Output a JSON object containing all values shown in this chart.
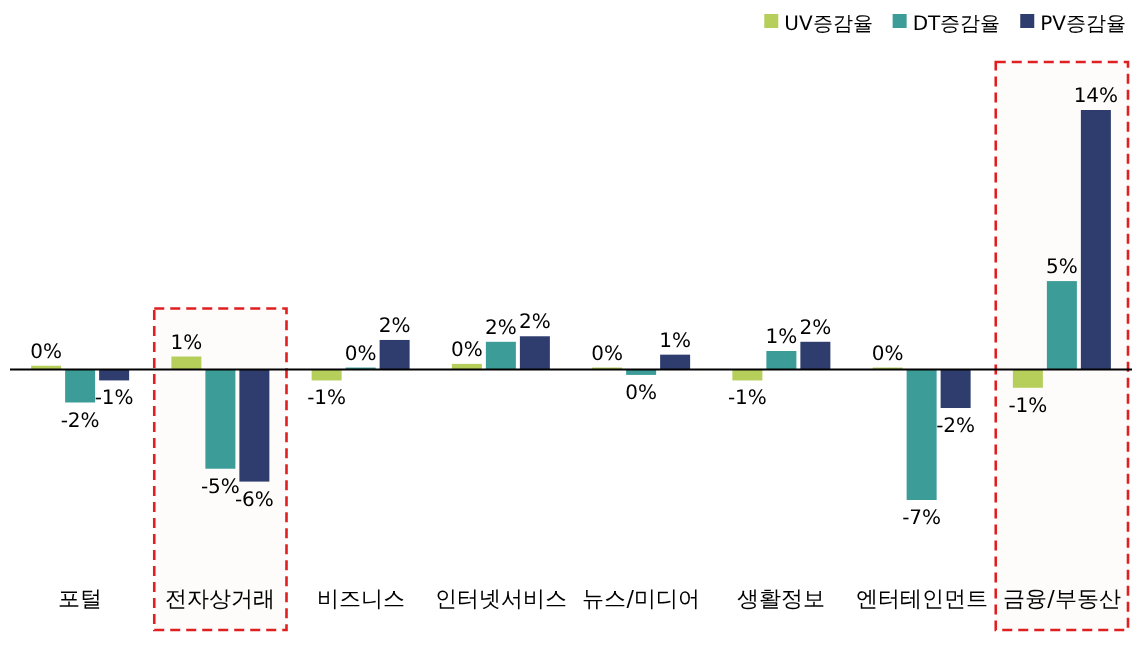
{
  "chart_data": {
    "type": "bar",
    "categories": [
      "포털",
      "전자상거래",
      "비즈니스",
      "인터넷서비스",
      "뉴스/미디어",
      "생활정보",
      "엔터테인먼트",
      "금융/부동산"
    ],
    "series": [
      {
        "name": "UV증감율",
        "color": "#b5cf5a",
        "values": [
          0.2,
          0.7,
          -0.6,
          0.3,
          0.1,
          -0.6,
          0.1,
          -1.0
        ],
        "value_labels": [
          "0%",
          "1%",
          "-1%",
          "0%",
          "0%",
          "-1%",
          "0%",
          "-1%"
        ]
      },
      {
        "name": "DT증감율",
        "color": "#3c9d98",
        "values": [
          -1.8,
          -5.4,
          0.1,
          1.5,
          -0.3,
          1.0,
          -7.1,
          4.8
        ],
        "value_labels": [
          "-2%",
          "-5%",
          "0%",
          "2%",
          "0%",
          "1%",
          "-7%",
          "5%"
        ]
      },
      {
        "name": "PV증감율",
        "color": "#2e3d6e",
        "values": [
          -0.6,
          -6.1,
          1.6,
          1.8,
          0.8,
          1.5,
          -2.1,
          14.1
        ],
        "value_labels": [
          "-1%",
          "-6%",
          "2%",
          "2%",
          "1%",
          "2%",
          "-2%",
          "14%"
        ]
      }
    ],
    "legend": "top right",
    "bands": [
      {
        "axis": "x",
        "from": "전자상거래",
        "to": "전자상거래",
        "color": "#e02020"
      },
      {
        "axis": "x",
        "from": "금융/부동산",
        "to": "금융/부동산",
        "color": "#e02020"
      }
    ]
  }
}
